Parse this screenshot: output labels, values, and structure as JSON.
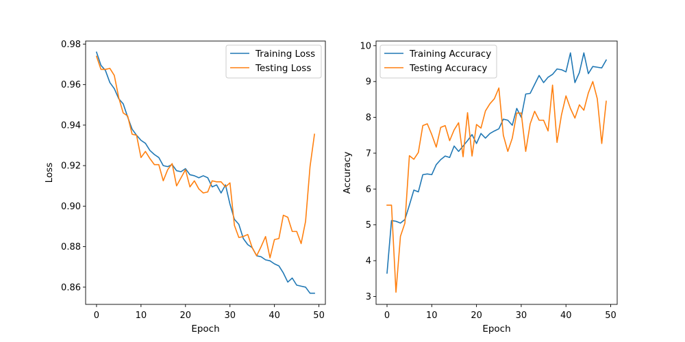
{
  "chart_data": [
    {
      "type": "line",
      "xlabel": "Epoch",
      "ylabel": "Loss",
      "xlim": [
        -2.45,
        51.45
      ],
      "ylim": [
        0.8515,
        0.9815
      ],
      "xticks": [
        0,
        10,
        20,
        30,
        40,
        50
      ],
      "yticks": [
        0.86,
        0.88,
        0.9,
        0.92,
        0.94,
        0.96,
        0.98
      ],
      "ytick_labels": [
        "0.86",
        "0.88",
        "0.90",
        "0.92",
        "0.94",
        "0.96",
        "0.98"
      ],
      "legend": "top-right",
      "grid": false,
      "x": [
        0,
        1,
        2,
        3,
        4,
        5,
        6,
        7,
        8,
        9,
        10,
        11,
        12,
        13,
        14,
        15,
        16,
        17,
        18,
        19,
        20,
        21,
        22,
        23,
        24,
        25,
        26,
        27,
        28,
        29,
        30,
        31,
        32,
        33,
        34,
        35,
        36,
        37,
        38,
        39,
        40,
        41,
        42,
        43,
        44,
        45,
        46,
        47,
        48,
        49
      ],
      "series": [
        {
          "name": "Training Loss",
          "color": "#1f77b4",
          "values": [
            0.976,
            0.9695,
            0.967,
            0.961,
            0.958,
            0.953,
            0.9505,
            0.944,
            0.938,
            0.935,
            0.9325,
            0.931,
            0.9275,
            0.9255,
            0.924,
            0.92,
            0.9195,
            0.9205,
            0.9175,
            0.917,
            0.9185,
            0.9155,
            0.915,
            0.914,
            0.915,
            0.914,
            0.9095,
            0.9105,
            0.9065,
            0.9105,
            0.901,
            0.8935,
            0.891,
            0.884,
            0.881,
            0.8795,
            0.8755,
            0.875,
            0.8735,
            0.873,
            0.8715,
            0.8705,
            0.867,
            0.8625,
            0.8645,
            0.861,
            0.8605,
            0.86,
            0.857,
            0.857
          ]
        },
        {
          "name": "Testing Loss",
          "color": "#ff7f0e",
          "values": [
            0.974,
            0.9675,
            0.9675,
            0.968,
            0.9645,
            0.9535,
            0.946,
            0.9445,
            0.9355,
            0.935,
            0.924,
            0.927,
            0.9235,
            0.9205,
            0.9205,
            0.9125,
            0.918,
            0.921,
            0.91,
            0.914,
            0.918,
            0.9095,
            0.9125,
            0.9085,
            0.9065,
            0.907,
            0.9125,
            0.912,
            0.912,
            0.9095,
            0.9115,
            0.8905,
            0.8845,
            0.885,
            0.886,
            0.8795,
            0.8755,
            0.88,
            0.885,
            0.8745,
            0.8835,
            0.884,
            0.8955,
            0.8945,
            0.8875,
            0.8875,
            0.8815,
            0.8925,
            0.9195,
            0.9355
          ]
        }
      ]
    },
    {
      "type": "line",
      "xlabel": "Epoch",
      "ylabel": "Accuracy",
      "xlim": [
        -2.45,
        51.45
      ],
      "ylim": [
        2.78,
        10.13
      ],
      "xticks": [
        0,
        10,
        20,
        30,
        40,
        50
      ],
      "yticks": [
        3,
        4,
        5,
        6,
        7,
        8,
        9,
        10
      ],
      "ytick_labels": [
        "3",
        "4",
        "5",
        "6",
        "7",
        "8",
        "9",
        "10"
      ],
      "legend": "top-left",
      "grid": false,
      "x": [
        0,
        1,
        2,
        3,
        4,
        5,
        6,
        7,
        8,
        9,
        10,
        11,
        12,
        13,
        14,
        15,
        16,
        17,
        18,
        19,
        20,
        21,
        22,
        23,
        24,
        25,
        26,
        27,
        28,
        29,
        30,
        31,
        32,
        33,
        34,
        35,
        36,
        37,
        38,
        39,
        40,
        41,
        42,
        43,
        44,
        45,
        46,
        47,
        48,
        49
      ],
      "series": [
        {
          "name": "Training Accuracy",
          "color": "#1f77b4",
          "values": [
            3.65,
            5.12,
            5.1,
            5.05,
            5.15,
            5.55,
            5.97,
            5.92,
            6.4,
            6.42,
            6.4,
            6.68,
            6.82,
            6.92,
            6.88,
            7.2,
            7.05,
            7.2,
            7.35,
            7.52,
            7.27,
            7.55,
            7.42,
            7.55,
            7.62,
            7.68,
            7.95,
            7.92,
            7.78,
            8.25,
            8.0,
            8.65,
            8.67,
            8.92,
            9.17,
            8.97,
            9.12,
            9.2,
            9.35,
            9.33,
            9.27,
            9.8,
            8.97,
            9.25,
            9.8,
            9.22,
            9.42,
            9.4,
            9.38,
            9.6
          ]
        },
        {
          "name": "Testing Accuracy",
          "color": "#ff7f0e",
          "values": [
            5.55,
            5.55,
            3.12,
            4.68,
            5.05,
            6.93,
            6.83,
            7.02,
            7.77,
            7.82,
            7.52,
            7.17,
            7.72,
            7.77,
            7.35,
            7.65,
            7.85,
            6.9,
            8.13,
            6.92,
            7.8,
            7.7,
            8.18,
            8.38,
            8.52,
            8.82,
            7.5,
            7.05,
            7.42,
            8.12,
            8.12,
            7.05,
            7.82,
            8.17,
            7.92,
            7.92,
            7.62,
            8.9,
            7.3,
            8.07,
            8.6,
            8.25,
            7.98,
            8.35,
            8.2,
            8.68,
            9.0,
            8.52,
            7.27,
            8.45
          ]
        }
      ]
    }
  ]
}
